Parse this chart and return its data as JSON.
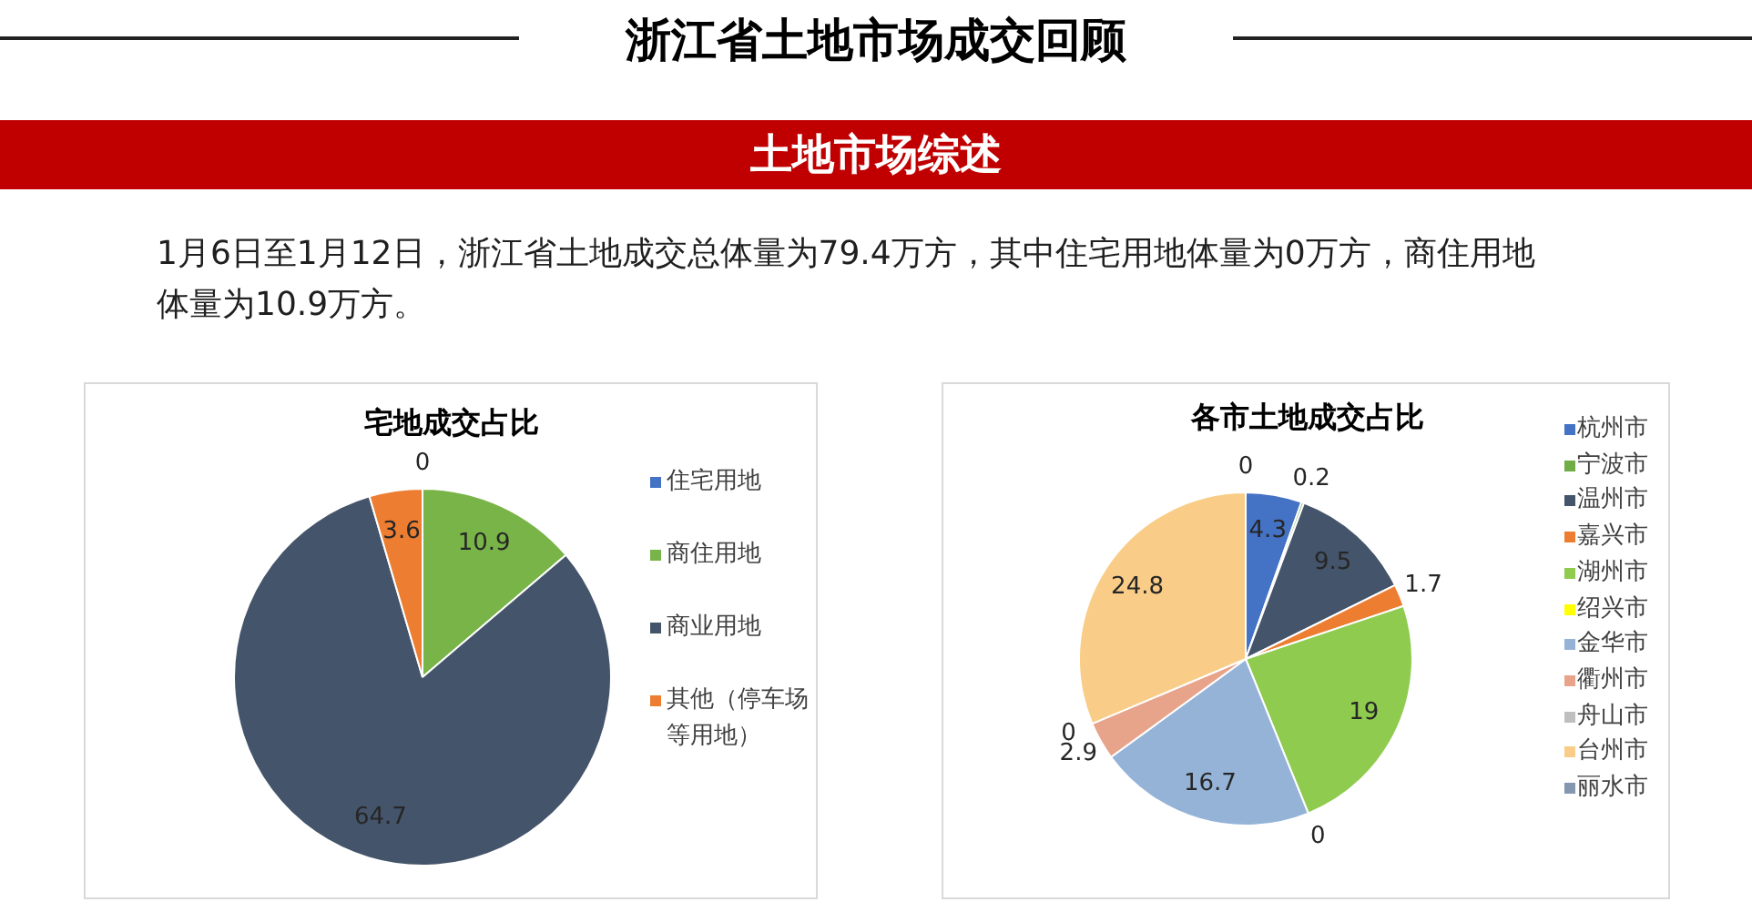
{
  "chart_data": [
    {
      "type": "other",
      "title": "浙江省土地市场成交回顾",
      "subtitle": "土地市场综述",
      "annotations": [
        "1月6日至1月12日，浙江省土地成交总体量为79.4万方，其中住宅用地体量为0万方，商住用地体量为10.9万方。"
      ]
    },
    {
      "type": "pie",
      "title": "宅地成交占比",
      "categories": [
        "住宅用地",
        "商住用地",
        "商业用地",
        "其他（停车场等用地）"
      ],
      "values": [
        0,
        10.9,
        64.7,
        3.6
      ],
      "value_labels": [
        "0",
        "10.9",
        "64.7",
        "3.6"
      ],
      "colors": [
        "#4472c4",
        "#78b447",
        "#44546a",
        "#ed7d31"
      ],
      "legend": "right"
    },
    {
      "type": "pie",
      "title": "各市土地成交占比",
      "categories": [
        "杭州市",
        "宁波市",
        "温州市",
        "嘉兴市",
        "湖州市",
        "绍兴市",
        "金华市",
        "衢州市",
        "舟山市",
        "台州市",
        "丽水市"
      ],
      "values": [
        4.3,
        0.2,
        9.5,
        1.7,
        19,
        0,
        16.7,
        2.9,
        0,
        24.8,
        0
      ],
      "value_labels": [
        "4.3",
        "0.2",
        "9.5",
        "1.7",
        "19",
        "0",
        "16.7",
        "2.9",
        "0",
        "24.8",
        "0"
      ],
      "colors": [
        "#4472c4",
        "#70ad47",
        "#44546a",
        "#ed7d31",
        "#8fcb4f",
        "#ffff00",
        "#95b3d7",
        "#e8a48a",
        "#bfbfbf",
        "#f9cd87",
        "#8497b0"
      ],
      "legend": "right"
    }
  ]
}
